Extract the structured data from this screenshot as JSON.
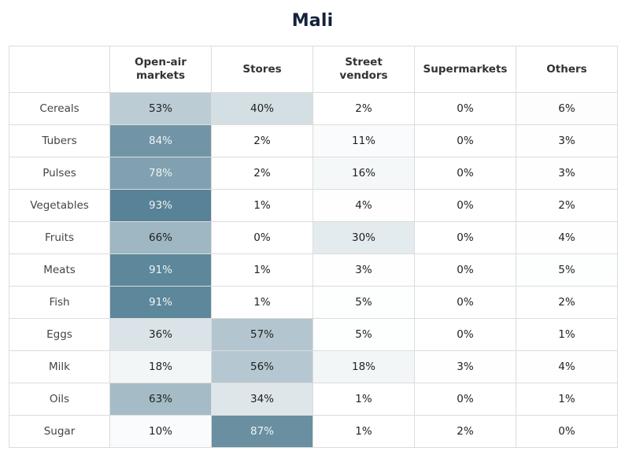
{
  "chart_data": {
    "type": "heatmap",
    "title": "Mali",
    "columns": [
      "Open-air markets",
      "Stores",
      "Street vendors",
      "Supermarkets",
      "Others"
    ],
    "column_labels_wrapped": [
      [
        "Open-air",
        "markets"
      ],
      [
        "Stores"
      ],
      [
        "Street",
        "vendors"
      ],
      [
        "Supermarkets"
      ],
      [
        "Others"
      ]
    ],
    "rows": [
      {
        "label": "Cereals",
        "values": [
          53,
          40,
          2,
          0,
          6
        ]
      },
      {
        "label": "Tubers",
        "values": [
          84,
          2,
          11,
          0,
          3
        ]
      },
      {
        "label": "Pulses",
        "values": [
          78,
          2,
          16,
          0,
          3
        ]
      },
      {
        "label": "Vegetables",
        "values": [
          93,
          1,
          4,
          0,
          2
        ]
      },
      {
        "label": "Fruits",
        "values": [
          66,
          0,
          30,
          0,
          4
        ]
      },
      {
        "label": "Meats",
        "values": [
          91,
          1,
          3,
          0,
          5
        ]
      },
      {
        "label": "Fish",
        "values": [
          91,
          1,
          5,
          0,
          2
        ]
      },
      {
        "label": "Eggs",
        "values": [
          36,
          57,
          5,
          0,
          1
        ]
      },
      {
        "label": "Milk",
        "values": [
          18,
          56,
          18,
          3,
          4
        ]
      },
      {
        "label": "Oils",
        "values": [
          63,
          34,
          1,
          0,
          1
        ]
      },
      {
        "label": "Sugar",
        "values": [
          10,
          87,
          1,
          2,
          0
        ]
      }
    ],
    "value_suffix": "%",
    "value_range": [
      0,
      100
    ],
    "colors": {
      "high": "#43738a",
      "low": "#ffffff",
      "text_dark": "#222222",
      "text_light": "#eef3f5",
      "title": "#14213d"
    }
  }
}
